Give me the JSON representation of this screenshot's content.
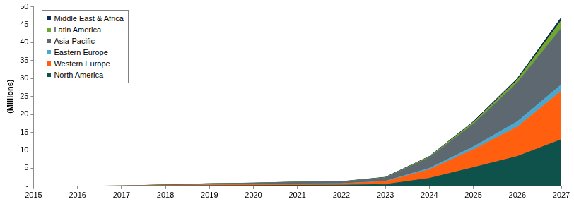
{
  "chart_data": {
    "type": "area",
    "y_label": "(Millions)",
    "x": [
      2015,
      2016,
      2017,
      2018,
      2019,
      2020,
      2021,
      2022,
      2023,
      2024,
      2025,
      2026,
      2027
    ],
    "series": [
      {
        "name": "North America",
        "color": "#0e524b",
        "values": [
          0,
          0,
          0.05,
          0.1,
          0.15,
          0.2,
          0.25,
          0.3,
          0.5,
          2.2,
          5.2,
          8.3,
          13
        ]
      },
      {
        "name": "Western Europe",
        "color": "#ff5f0f",
        "values": [
          0,
          0,
          0.03,
          0.1,
          0.2,
          0.25,
          0.35,
          0.4,
          0.8,
          2.4,
          5.0,
          8.2,
          13.5
        ]
      },
      {
        "name": "Eastern Europe",
        "color": "#4da6cc",
        "values": [
          0,
          0,
          0,
          0.02,
          0.03,
          0.03,
          0.05,
          0.05,
          0.1,
          0.4,
          0.8,
          1.5,
          1.8
        ]
      },
      {
        "name": "Asia-Pacific",
        "color": "#5e6870",
        "values": [
          0,
          0,
          0.02,
          0.15,
          0.3,
          0.38,
          0.5,
          0.5,
          0.9,
          3.0,
          6.3,
          10.8,
          15.7
        ]
      },
      {
        "name": "Latin America",
        "color": "#6fa62f",
        "values": [
          0,
          0,
          0,
          0.02,
          0.02,
          0.02,
          0.03,
          0.03,
          0.1,
          0.2,
          0.5,
          0.8,
          2.2
        ]
      },
      {
        "name": "Middle East & Africa",
        "color": "#0d2b4e",
        "values": [
          0,
          0,
          0,
          0.01,
          0.02,
          0.02,
          0.02,
          0.02,
          0.1,
          0.1,
          0.2,
          0.4,
          0.8
        ]
      }
    ],
    "stacked": true,
    "xlim": [
      2015,
      2027
    ],
    "xticks": [
      2015,
      2016,
      2017,
      2018,
      2019,
      2020,
      2021,
      2022,
      2023,
      2024,
      2025,
      2026,
      2027
    ],
    "ylim": [
      0,
      50
    ],
    "yticks": [
      {
        "value": 0,
        "label": "-"
      },
      5,
      10,
      15,
      20,
      25,
      30,
      35,
      40,
      45,
      50
    ],
    "grid": false,
    "legend": "upper left"
  }
}
